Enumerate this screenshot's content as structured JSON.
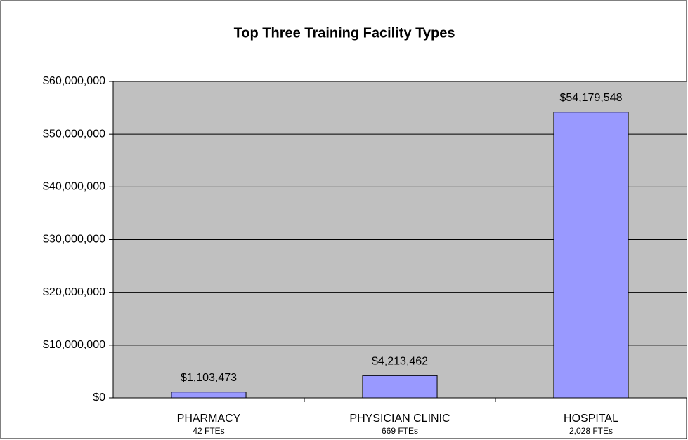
{
  "chart_data": {
    "type": "bar",
    "title": "Top Three Training Facility Types",
    "categories": [
      "PHARMACY",
      "PHYSICIAN CLINIC",
      "HOSPITAL"
    ],
    "category_notes": [
      "42 FTEs",
      "669  FTEs",
      "2,028 FTEs"
    ],
    "values": [
      1103473,
      4213462,
      54179548
    ],
    "value_labels": [
      "$1,103,473",
      "$4,213,462",
      "$54,179,548"
    ],
    "color": "#9999ff",
    "ylim": [
      0,
      60000000
    ],
    "yticks": [
      {
        "value": 0,
        "label": "$0"
      },
      {
        "value": 10000000,
        "label": "$10,000,000"
      },
      {
        "value": 20000000,
        "label": "$20,000,000"
      },
      {
        "value": 30000000,
        "label": "$30,000,000"
      },
      {
        "value": 40000000,
        "label": "$40,000,000"
      },
      {
        "value": 50000000,
        "label": "$50,000,000"
      },
      {
        "value": 60000000,
        "label": "$60,000,000"
      }
    ],
    "grid": true
  }
}
